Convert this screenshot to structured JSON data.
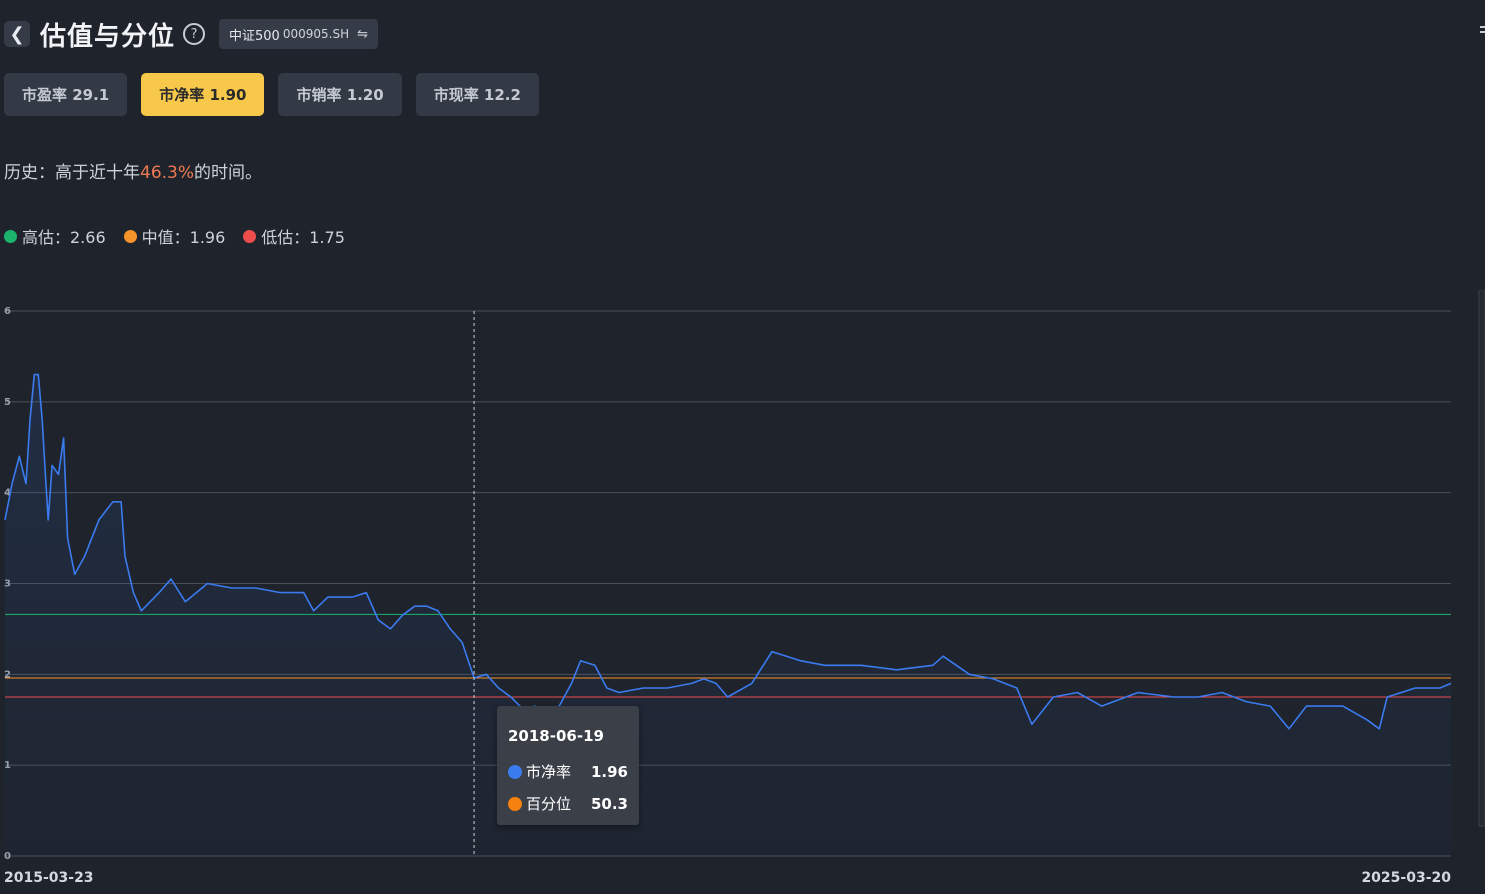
{
  "header": {
    "back_icon": "chevron-left-icon",
    "title": "估值与分位",
    "help_icon": "question-circle-icon",
    "index_name": "中证500",
    "index_code": "000905.SH",
    "swap_icon": "swap-arrows-icon"
  },
  "tabs": [
    {
      "label": "市盈率 29.1",
      "active": false
    },
    {
      "label": "市净率 1.90",
      "active": true
    },
    {
      "label": "市销率 1.20",
      "active": false
    },
    {
      "label": "市现率 12.2",
      "active": false
    }
  ],
  "history": {
    "prefix": "历史：高于近十年",
    "percent": "46.3%",
    "suffix": "的时间。"
  },
  "legend": [
    {
      "label": "高估：2.66",
      "color": "#1bb46b"
    },
    {
      "label": "中值：1.96",
      "color": "#f5932a"
    },
    {
      "label": "低估：1.75",
      "color": "#ee4d4d"
    }
  ],
  "chart_data": {
    "type": "line",
    "series_color": "#3b7bf0",
    "y_ticks": [
      "0",
      "1",
      "2",
      "3",
      "4",
      "5",
      "6"
    ],
    "ylim": [
      0,
      6
    ],
    "x_labels": [
      "2015-03-23",
      "2025-03-20"
    ],
    "x_range": [
      "2015-03-23",
      "2025-03-20"
    ],
    "grid": true,
    "reference_lines": [
      {
        "value": 2.66,
        "color": "#1bb46b"
      },
      {
        "value": 1.96,
        "color": "#f5932a"
      },
      {
        "value": 1.75,
        "color": "#ee4d4d"
      }
    ],
    "points": [
      [
        "2015-03-23",
        3.7
      ],
      [
        "2015-04-10",
        4.1
      ],
      [
        "2015-04-28",
        4.4
      ],
      [
        "2015-05-15",
        4.1
      ],
      [
        "2015-05-25",
        4.8
      ],
      [
        "2015-06-05",
        5.3
      ],
      [
        "2015-06-15",
        5.3
      ],
      [
        "2015-06-25",
        4.8
      ],
      [
        "2015-07-03",
        4.2
      ],
      [
        "2015-07-10",
        3.7
      ],
      [
        "2015-07-20",
        4.3
      ],
      [
        "2015-08-05",
        4.2
      ],
      [
        "2015-08-18",
        4.6
      ],
      [
        "2015-08-28",
        3.5
      ],
      [
        "2015-09-15",
        3.1
      ],
      [
        "2015-10-10",
        3.3
      ],
      [
        "2015-11-15",
        3.7
      ],
      [
        "2015-12-20",
        3.9
      ],
      [
        "2016-01-10",
        3.9
      ],
      [
        "2016-01-20",
        3.3
      ],
      [
        "2016-02-10",
        2.9
      ],
      [
        "2016-03-01",
        2.7
      ],
      [
        "2016-04-15",
        2.9
      ],
      [
        "2016-05-15",
        3.05
      ],
      [
        "2016-06-20",
        2.8
      ],
      [
        "2016-08-15",
        3.0
      ],
      [
        "2016-10-15",
        2.95
      ],
      [
        "2016-12-15",
        2.95
      ],
      [
        "2017-02-15",
        2.9
      ],
      [
        "2017-04-15",
        2.9
      ],
      [
        "2017-05-10",
        2.7
      ],
      [
        "2017-06-15",
        2.85
      ],
      [
        "2017-08-15",
        2.85
      ],
      [
        "2017-09-20",
        2.9
      ],
      [
        "2017-10-20",
        2.6
      ],
      [
        "2017-11-20",
        2.5
      ],
      [
        "2017-12-20",
        2.65
      ],
      [
        "2018-01-20",
        2.75
      ],
      [
        "2018-02-20",
        2.75
      ],
      [
        "2018-03-20",
        2.7
      ],
      [
        "2018-04-20",
        2.5
      ],
      [
        "2018-05-20",
        2.35
      ],
      [
        "2018-06-19",
        1.96
      ],
      [
        "2018-07-20",
        2.0
      ],
      [
        "2018-08-20",
        1.85
      ],
      [
        "2018-09-20",
        1.75
      ],
      [
        "2018-10-20",
        1.62
      ],
      [
        "2018-11-20",
        1.65
      ],
      [
        "2018-12-20",
        1.6
      ],
      [
        "2019-01-20",
        1.65
      ],
      [
        "2019-02-20",
        1.9
      ],
      [
        "2019-03-15",
        2.15
      ],
      [
        "2019-04-20",
        2.1
      ],
      [
        "2019-05-20",
        1.85
      ],
      [
        "2019-06-20",
        1.8
      ],
      [
        "2019-08-20",
        1.85
      ],
      [
        "2019-10-20",
        1.85
      ],
      [
        "2019-12-20",
        1.9
      ],
      [
        "2020-01-20",
        1.95
      ],
      [
        "2020-02-20",
        1.9
      ],
      [
        "2020-03-20",
        1.75
      ],
      [
        "2020-05-20",
        1.9
      ],
      [
        "2020-07-10",
        2.25
      ],
      [
        "2020-09-20",
        2.15
      ],
      [
        "2020-11-20",
        2.1
      ],
      [
        "2021-02-20",
        2.1
      ],
      [
        "2021-05-20",
        2.05
      ],
      [
        "2021-08-20",
        2.1
      ],
      [
        "2021-09-15",
        2.2
      ],
      [
        "2021-11-20",
        2.0
      ],
      [
        "2022-01-20",
        1.95
      ],
      [
        "2022-03-20",
        1.85
      ],
      [
        "2022-04-27",
        1.45
      ],
      [
        "2022-06-20",
        1.75
      ],
      [
        "2022-08-20",
        1.8
      ],
      [
        "2022-10-20",
        1.65
      ],
      [
        "2023-01-20",
        1.8
      ],
      [
        "2023-04-20",
        1.75
      ],
      [
        "2023-06-20",
        1.75
      ],
      [
        "2023-08-20",
        1.8
      ],
      [
        "2023-10-20",
        1.7
      ],
      [
        "2023-12-20",
        1.65
      ],
      [
        "2024-02-05",
        1.4
      ],
      [
        "2024-03-20",
        1.65
      ],
      [
        "2024-06-20",
        1.65
      ],
      [
        "2024-08-20",
        1.5
      ],
      [
        "2024-09-20",
        1.4
      ],
      [
        "2024-10-10",
        1.75
      ],
      [
        "2024-12-20",
        1.85
      ],
      [
        "2025-02-20",
        1.85
      ],
      [
        "2025-03-20",
        1.9
      ]
    ]
  },
  "tooltip": {
    "date": "2018-06-19",
    "rows": [
      {
        "label": "市净率",
        "value": "1.96",
        "color": "#3b7bf0"
      },
      {
        "label": "百分位",
        "value": "50.3",
        "color": "#f5820f"
      }
    ]
  }
}
